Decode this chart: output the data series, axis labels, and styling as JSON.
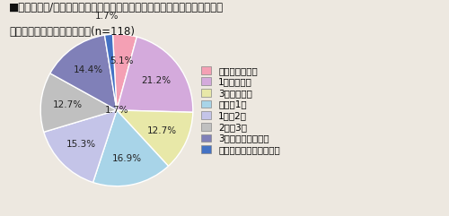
{
  "title_line1": "■現在の恋人/配偶者のご両親に初めて挨拶をしたのは、付き合ってどのく",
  "title_line2": "　らいたった時期でしたか。(n=118)",
  "labels": [
    "付き合ってすぐ",
    "1ヵ月～半年",
    "3ヶ月～半年",
    "半年～1年",
    "1年～2年",
    "2年～3年",
    "3年以上経ってから",
    "まだ挨拶したことがない"
  ],
  "values": [
    5.1,
    21.2,
    12.7,
    16.9,
    15.3,
    12.7,
    14.4,
    1.7
  ],
  "colors": [
    "#f4a0b4",
    "#d4aadc",
    "#e8e8a8",
    "#a8d4e8",
    "#c4c4e8",
    "#c0c0c0",
    "#8080b8",
    "#4472c4"
  ],
  "background_color": "#ede8e0",
  "title_fontsize": 8.5,
  "legend_fontsize": 7.5,
  "pct_fontsize": 7.5,
  "label_outside_fontsize": 7.5
}
